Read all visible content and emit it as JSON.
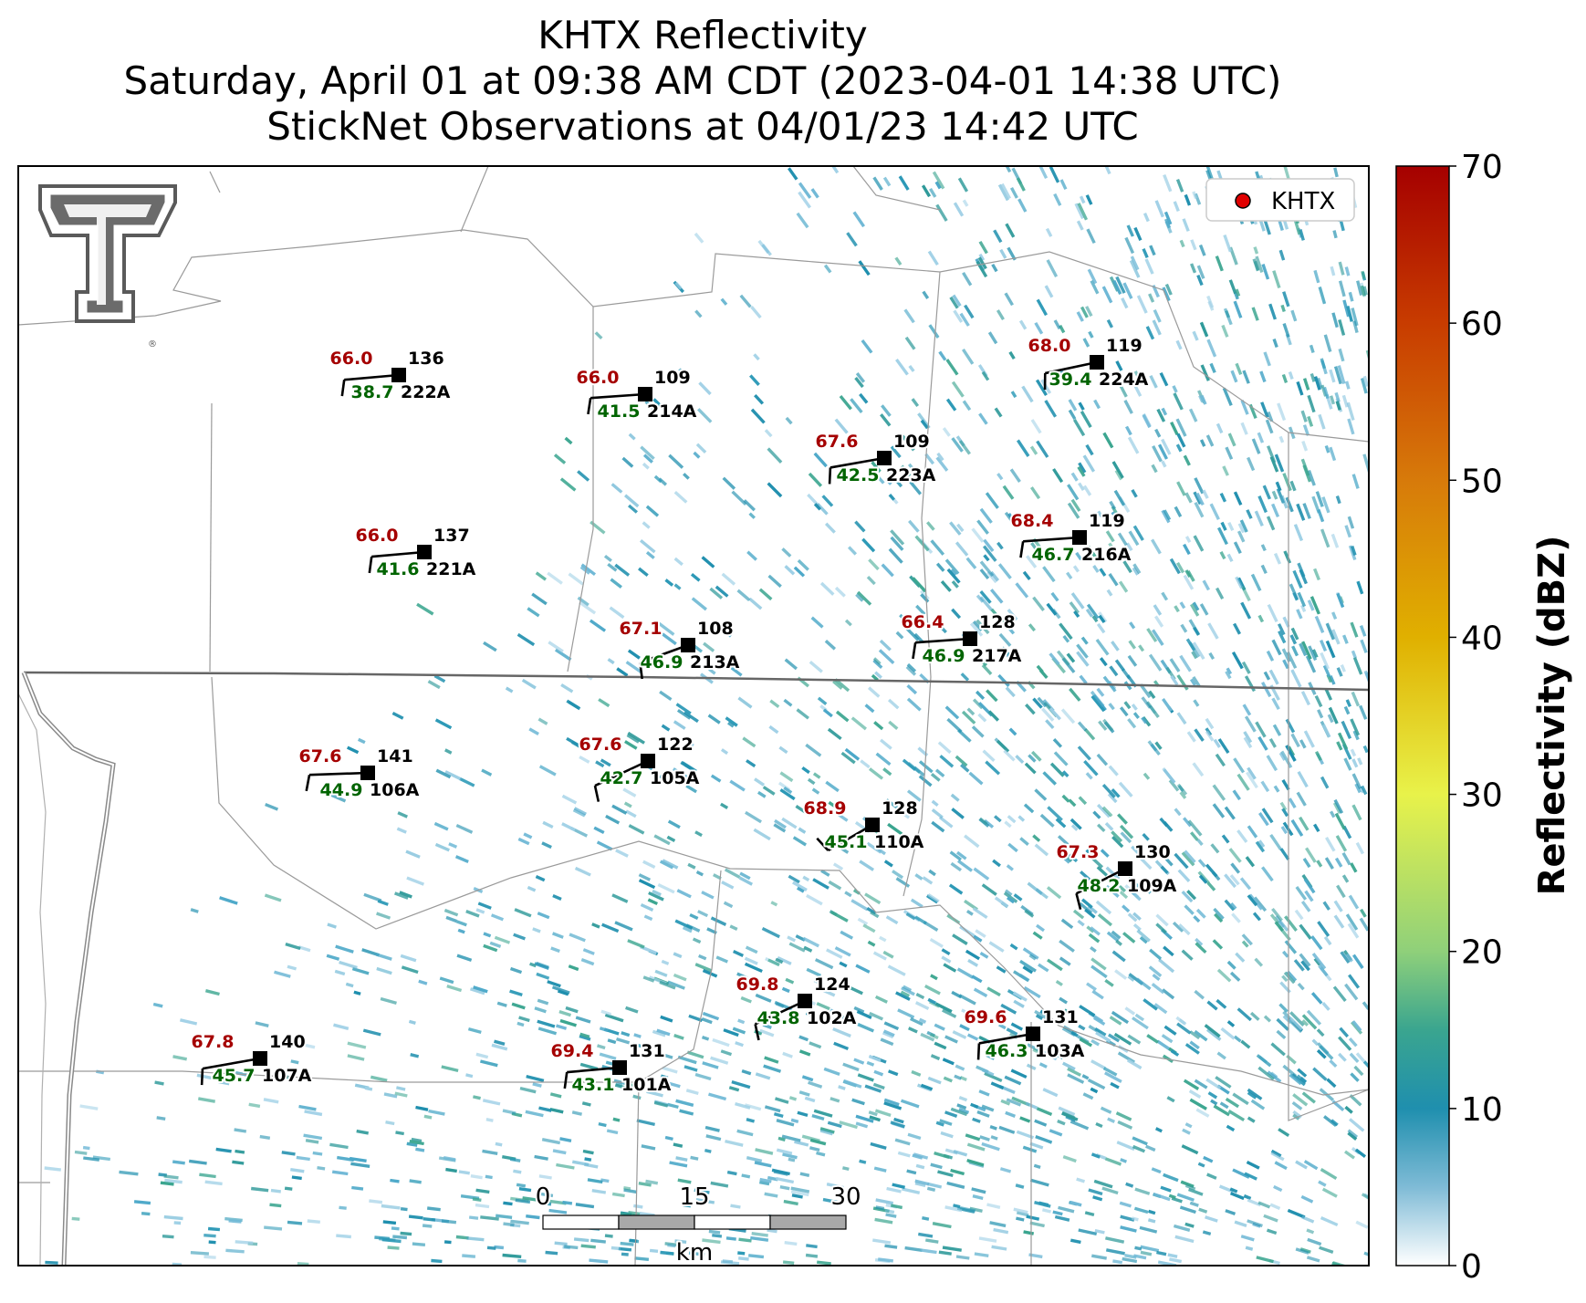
{
  "title": {
    "line1": "KHTX Reflectivity",
    "line2": "Saturday, April 01 at 09:38 AM CDT (2023-04-01 14:38 UTC)",
    "line3": "StickNet Observations at 04/01/23 14:42 UTC"
  },
  "legend": {
    "label": "KHTX",
    "marker_color": "#e00000"
  },
  "colorbar": {
    "label": "Reflectivity (dBZ)",
    "ticks": [
      "0",
      "10",
      "20",
      "30",
      "40",
      "50",
      "60",
      "70"
    ],
    "range": [
      0,
      70
    ],
    "stops": [
      {
        "v": 0,
        "c": "#ffffff"
      },
      {
        "v": 5,
        "c": "#7fbbd6"
      },
      {
        "v": 10,
        "c": "#1f8fae"
      },
      {
        "v": 15,
        "c": "#3aa58f"
      },
      {
        "v": 20,
        "c": "#8fd07a"
      },
      {
        "v": 30,
        "c": "#e8f24a"
      },
      {
        "v": 40,
        "c": "#e0b000"
      },
      {
        "v": 50,
        "c": "#d77a0a"
      },
      {
        "v": 60,
        "c": "#c83c00"
      },
      {
        "v": 70,
        "c": "#a50000"
      }
    ]
  },
  "scalebar": {
    "ticks": [
      "0",
      "15",
      "30"
    ],
    "unit": "km"
  },
  "stations": [
    {
      "id": "222A",
      "temp": "66.0",
      "dew": "38.7",
      "val": "136"
    },
    {
      "id": "214A",
      "temp": "66.0",
      "dew": "41.5",
      "val": "109"
    },
    {
      "id": "223A",
      "temp": "67.6",
      "dew": "42.5",
      "val": "109"
    },
    {
      "id": "224A",
      "temp": "68.0",
      "dew": "39.4",
      "val": "119"
    },
    {
      "id": "221A",
      "temp": "66.0",
      "dew": "41.6",
      "val": "137"
    },
    {
      "id": "216A",
      "temp": "68.4",
      "dew": "46.7",
      "val": "119"
    },
    {
      "id": "213A",
      "temp": "67.1",
      "dew": "46.9",
      "val": "108"
    },
    {
      "id": "217A",
      "temp": "66.4",
      "dew": "46.9",
      "val": "128"
    },
    {
      "id": "106A",
      "temp": "67.6",
      "dew": "44.9",
      "val": "141"
    },
    {
      "id": "105A",
      "temp": "67.6",
      "dew": "42.7",
      "val": "122"
    },
    {
      "id": "110A",
      "temp": "68.9",
      "dew": "45.1",
      "val": "128"
    },
    {
      "id": "109A",
      "temp": "67.3",
      "dew": "48.2",
      "val": "130"
    },
    {
      "id": "102A",
      "temp": "69.8",
      "dew": "43.8",
      "val": "124"
    },
    {
      "id": "103A",
      "temp": "69.6",
      "dew": "46.3",
      "val": "131"
    },
    {
      "id": "107A",
      "temp": "67.8",
      "dew": "45.7",
      "val": "140"
    },
    {
      "id": "101A",
      "temp": "69.4",
      "dew": "43.1",
      "val": "131"
    }
  ]
}
